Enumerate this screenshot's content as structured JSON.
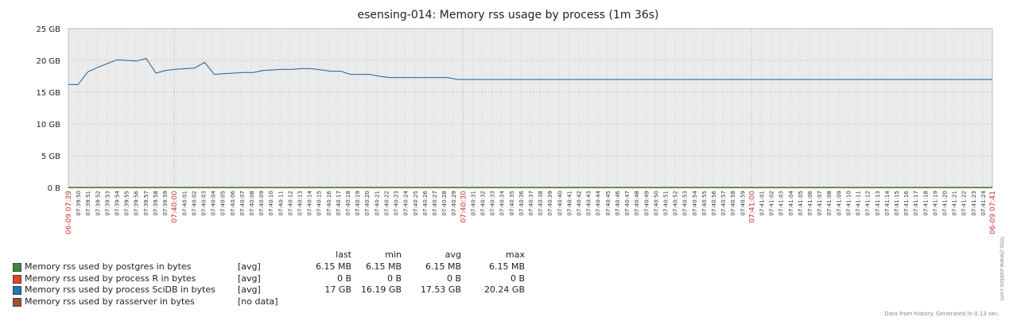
{
  "chart_data": {
    "type": "line",
    "title": "esensing-014: Memory rss usage by process (1m 36s)",
    "y_ticks": [
      "25 GB",
      "20 GB",
      "15 GB",
      "10 GB",
      "5 GB",
      "0 B"
    ],
    "ylim": [
      0,
      25
    ],
    "y_unit": "GB",
    "grid": true,
    "x_start_label": "06-09 07:39",
    "x_end_label": "06-09 07:41",
    "x_red_labels": [
      "07:40:00",
      "07:40:30",
      "07:41:00"
    ],
    "x_tick_labels": [
      "07:39:50",
      "07:39:51",
      "07:39:52",
      "07:39:53",
      "07:39:54",
      "07:39:55",
      "07:39:56",
      "07:39:57",
      "07:39:58",
      "07:39:59",
      "07:40:00",
      "07:40:01",
      "07:40:02",
      "07:40:03",
      "07:40:04",
      "07:40:05",
      "07:40:06",
      "07:40:07",
      "07:40:08",
      "07:40:09",
      "07:40:10",
      "07:40:11",
      "07:40:12",
      "07:40:13",
      "07:40:14",
      "07:40:15",
      "07:40:16",
      "07:40:17",
      "07:40:18",
      "07:40:19",
      "07:40:20",
      "07:40:21",
      "07:40:22",
      "07:40:23",
      "07:40:24",
      "07:40:25",
      "07:40:26",
      "07:40:27",
      "07:40:28",
      "07:40:29",
      "07:40:30",
      "07:40:31",
      "07:40:32",
      "07:40:33",
      "07:40:34",
      "07:40:35",
      "07:40:36",
      "07:40:37",
      "07:40:38",
      "07:40:39",
      "07:40:40",
      "07:40:41",
      "07:40:42",
      "07:40:43",
      "07:40:44",
      "07:40:45",
      "07:40:46",
      "07:40:47",
      "07:40:48",
      "07:40:49",
      "07:40:50",
      "07:40:51",
      "07:40:52",
      "07:40:53",
      "07:40:54",
      "07:40:55",
      "07:40:56",
      "07:40:57",
      "07:40:58",
      "07:40:59",
      "07:41:00",
      "07:41:01",
      "07:41:02",
      "07:41:03",
      "07:41:04",
      "07:41:05",
      "07:41:06",
      "07:41:07",
      "07:41:08",
      "07:41:09",
      "07:41:10",
      "07:41:11",
      "07:41:12",
      "07:41:13",
      "07:41:14",
      "07:41:15",
      "07:41:16",
      "07:41:17",
      "07:41:18",
      "07:41:19",
      "07:41:20",
      "07:41:21",
      "07:41:22",
      "07:41:23",
      "07:41:24"
    ],
    "series": [
      {
        "name": "Memory rss used by process SciDB in bytes",
        "color": "#1f5f9e",
        "values": [
          16.2,
          16.2,
          18.2,
          18.9,
          19.5,
          20.1,
          20.0,
          19.9,
          20.3,
          18.0,
          18.4,
          18.6,
          18.7,
          18.8,
          19.7,
          17.8,
          17.9,
          18.0,
          18.1,
          18.1,
          18.4,
          18.5,
          18.6,
          18.6,
          18.7,
          18.7,
          18.5,
          18.3,
          18.3,
          17.8,
          17.8,
          17.8,
          17.5,
          17.3,
          17.3,
          17.3,
          17.3,
          17.3,
          17.3,
          17.3,
          17.0,
          17.0,
          17.0,
          17.0,
          17.0,
          17.0,
          17.0,
          17.0,
          17.0,
          17.0,
          17.0,
          17.0,
          17.0,
          17.0,
          17.0,
          17.0,
          17.0,
          17.0,
          17.0,
          17.0,
          17.0,
          17.0,
          17.0,
          17.0,
          17.0,
          17.0,
          17.0,
          17.0,
          17.0,
          17.0,
          17.0,
          17.0,
          17.0,
          17.0,
          17.0,
          17.0,
          17.0,
          17.0,
          17.0,
          17.0,
          17.0,
          17.0,
          17.0,
          17.0,
          17.0,
          17.0,
          17.0,
          17.0,
          17.0,
          17.0,
          17.0,
          17.0,
          17.0,
          17.0,
          17.0,
          17.0
        ]
      },
      {
        "name": "Memory rss used by process R in bytes",
        "color": "#e2431e",
        "values": [
          0,
          0
        ]
      },
      {
        "name": "Memory rss used by postgres in bytes",
        "color": "#3a8a3a",
        "values": [
          0.006,
          0.006
        ]
      }
    ]
  },
  "legend": {
    "headers": {
      "last": "last",
      "min": "min",
      "avg": "avg",
      "max": "max"
    },
    "rows": [
      {
        "name": "Memory rss used by postgres in bytes",
        "color": "#3a8a3a",
        "fn": "[avg]",
        "last": "6.15 MB",
        "min": "6.15 MB",
        "avg": "6.15 MB",
        "max": "6.15 MB"
      },
      {
        "name": "Memory rss used by process R in bytes",
        "color": "#e2431e",
        "fn": "[avg]",
        "last": "0 B",
        "min": "0 B",
        "avg": "0 B",
        "max": "0 B"
      },
      {
        "name": "Memory rss used by process SciDB in bytes",
        "color": "#1f77b4",
        "fn": "[avg]",
        "last": "17 GB",
        "min": "16.19 GB",
        "avg": "17.53 GB",
        "max": "20.24 GB"
      },
      {
        "name": "Memory rss used by rasserver in bytes",
        "color": "#a0522d",
        "fn": "[no data]",
        "last": "",
        "min": "",
        "avg": "",
        "max": ""
      }
    ]
  },
  "footer": "Data from history. Generated in 0.13 sec.",
  "side_text": "http://www.zabbix.com"
}
